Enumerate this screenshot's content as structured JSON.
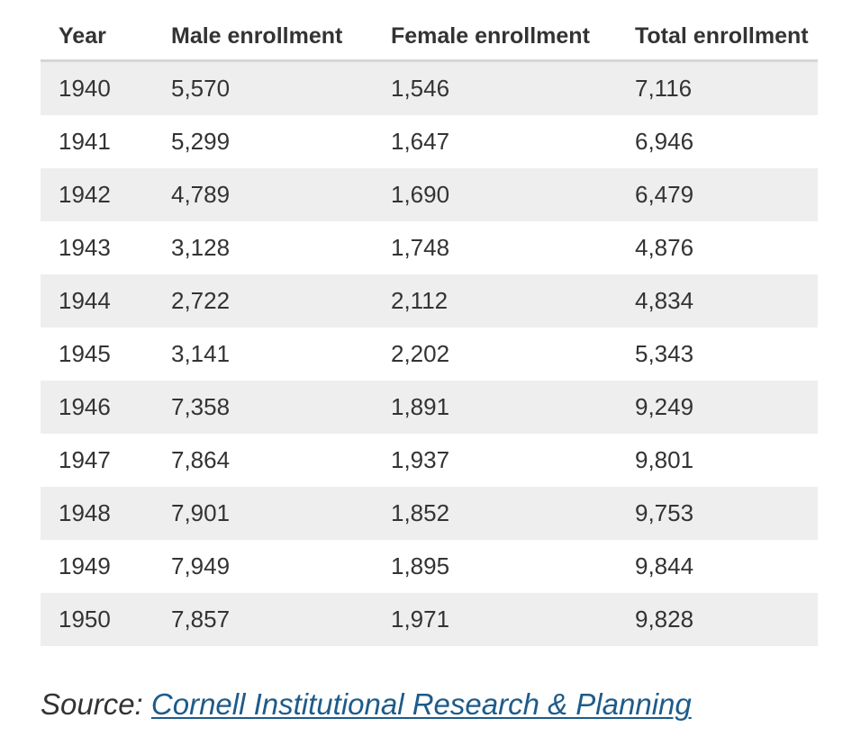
{
  "table": {
    "headers": {
      "year": "Year",
      "male": "Male enrollment",
      "female": "Female enrollment",
      "total": "Total enrollment"
    },
    "rows": [
      {
        "year": "1940",
        "male": "5,570",
        "female": "1,546",
        "total": "7,116"
      },
      {
        "year": "1941",
        "male": "5,299",
        "female": "1,647",
        "total": "6,946"
      },
      {
        "year": "1942",
        "male": "4,789",
        "female": "1,690",
        "total": "6,479"
      },
      {
        "year": "1943",
        "male": "3,128",
        "female": "1,748",
        "total": "4,876"
      },
      {
        "year": "1944",
        "male": "2,722",
        "female": "2,112",
        "total": "4,834"
      },
      {
        "year": "1945",
        "male": "3,141",
        "female": "2,202",
        "total": "5,343"
      },
      {
        "year": "1946",
        "male": "7,358",
        "female": "1,891",
        "total": "9,249"
      },
      {
        "year": "1947",
        "male": "7,864",
        "female": "1,937",
        "total": "9,801"
      },
      {
        "year": "1948",
        "male": "7,901",
        "female": "1,852",
        "total": "9,753"
      },
      {
        "year": "1949",
        "male": "7,949",
        "female": "1,895",
        "total": "9,844"
      },
      {
        "year": "1950",
        "male": "7,857",
        "female": "1,971",
        "total": "9,828"
      }
    ]
  },
  "source": {
    "label": "Source:",
    "link_text": "Cornell Institutional Research & Planning"
  },
  "colors": {
    "text": "#333333",
    "stripe": "#eeeeee",
    "header_rule": "#d6d6d6",
    "link": "#1e5b8a"
  }
}
